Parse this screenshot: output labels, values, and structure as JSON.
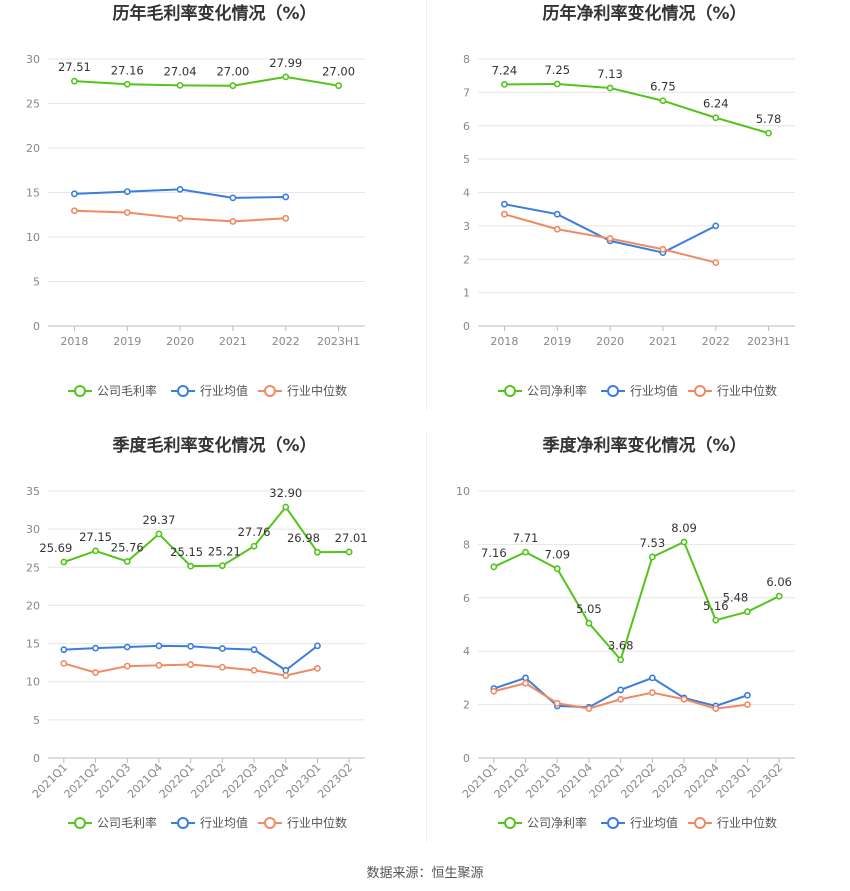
{
  "colors": {
    "company": "#52c41a",
    "avg": "#3b7ddd",
    "median": "#ef8a62",
    "grid": "#e6e6e6",
    "axis": "#bbbbbb"
  },
  "legend": {
    "company_gross": "公司毛利率",
    "company_net": "公司净利率",
    "avg": "行业均值",
    "median": "行业中位数"
  },
  "source": "数据来源：恒生聚源",
  "chart_data": [
    {
      "type": "line",
      "title": "历年毛利率变化情况（%）",
      "categories": [
        "2018",
        "2019",
        "2020",
        "2021",
        "2022",
        "2023H1"
      ],
      "ylim": [
        0,
        30
      ],
      "yticks": [
        0,
        5,
        10,
        15,
        20,
        25,
        30
      ],
      "rotate_x": false,
      "series": [
        {
          "name": "公司毛利率",
          "key": "company",
          "labels": true,
          "values": [
            27.51,
            27.16,
            27.04,
            27.0,
            27.99,
            27.0
          ]
        },
        {
          "name": "行业均值",
          "key": "avg",
          "labels": false,
          "values": [
            14.85,
            15.1,
            15.35,
            14.4,
            14.5,
            null
          ]
        },
        {
          "name": "行业中位数",
          "key": "median",
          "labels": false,
          "values": [
            12.95,
            12.75,
            12.1,
            11.75,
            12.1,
            null
          ]
        }
      ]
    },
    {
      "type": "line",
      "title": "历年净利率变化情况（%）",
      "categories": [
        "2018",
        "2019",
        "2020",
        "2021",
        "2022",
        "2023H1"
      ],
      "ylim": [
        0,
        8
      ],
      "yticks": [
        0,
        1,
        2,
        3,
        4,
        5,
        6,
        7,
        8
      ],
      "rotate_x": false,
      "series": [
        {
          "name": "公司净利率",
          "key": "company",
          "labels": true,
          "values": [
            7.24,
            7.25,
            7.13,
            6.75,
            6.24,
            5.78
          ]
        },
        {
          "name": "行业均值",
          "key": "avg",
          "labels": false,
          "values": [
            3.65,
            3.35,
            2.55,
            2.2,
            3.0,
            null
          ]
        },
        {
          "name": "行业中位数",
          "key": "median",
          "labels": false,
          "values": [
            3.35,
            2.9,
            2.62,
            2.3,
            1.9,
            null
          ]
        }
      ]
    },
    {
      "type": "line",
      "title": "季度毛利率变化情况（%）",
      "categories": [
        "2021Q1",
        "2021Q2",
        "2021Q3",
        "2021Q4",
        "2022Q1",
        "2022Q2",
        "2022Q3",
        "2022Q4",
        "2023Q1",
        "2023Q2"
      ],
      "ylim": [
        0,
        35
      ],
      "yticks": [
        0,
        5,
        10,
        15,
        20,
        25,
        30,
        35
      ],
      "rotate_x": true,
      "series": [
        {
          "name": "公司毛利率",
          "key": "company",
          "labels": true,
          "values": [
            25.69,
            27.15,
            25.76,
            29.37,
            25.15,
            25.21,
            27.76,
            32.9,
            26.98,
            27.01
          ]
        },
        {
          "name": "行业均值",
          "key": "avg",
          "labels": false,
          "values": [
            14.2,
            14.4,
            14.55,
            14.7,
            14.65,
            14.35,
            14.2,
            11.5,
            14.7,
            null
          ]
        },
        {
          "name": "行业中位数",
          "key": "median",
          "labels": false,
          "values": [
            12.4,
            11.2,
            12.05,
            12.15,
            12.25,
            11.9,
            11.5,
            10.8,
            11.75,
            null
          ]
        }
      ]
    },
    {
      "type": "line",
      "title": "季度净利率变化情况（%）",
      "categories": [
        "2021Q1",
        "2021Q2",
        "2021Q3",
        "2021Q4",
        "2022Q1",
        "2022Q2",
        "2022Q3",
        "2022Q4",
        "2023Q1",
        "2023Q2"
      ],
      "ylim": [
        0,
        10
      ],
      "yticks": [
        0,
        2,
        4,
        6,
        8,
        10
      ],
      "rotate_x": true,
      "series": [
        {
          "name": "公司净利率",
          "key": "company",
          "labels": true,
          "values": [
            7.16,
            7.71,
            7.09,
            5.05,
            3.68,
            7.53,
            8.09,
            5.16,
            5.48,
            6.06
          ]
        },
        {
          "name": "行业均值",
          "key": "avg",
          "labels": false,
          "values": [
            2.6,
            3.0,
            1.95,
            1.9,
            2.55,
            3.0,
            2.25,
            1.95,
            2.35,
            null
          ]
        },
        {
          "name": "行业中位数",
          "key": "median",
          "labels": false,
          "values": [
            2.5,
            2.8,
            2.05,
            1.85,
            2.2,
            2.45,
            2.2,
            1.85,
            2.0,
            null
          ]
        }
      ]
    }
  ]
}
